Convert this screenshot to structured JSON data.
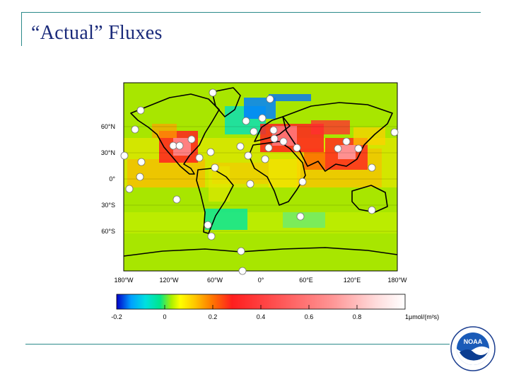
{
  "slide": {
    "title": "“Actual” Fluxes"
  },
  "map": {
    "lon_ticks": [
      "180°W",
      "120°W",
      "60°W",
      "0°",
      "60°E",
      "120°E",
      "180°W"
    ],
    "lat_ticks": [
      "60°N",
      "30°N",
      "0°",
      "30°S",
      "60°S"
    ]
  },
  "colorbar": {
    "ticks": [
      "-0.2",
      "0",
      "0.2",
      "0.4",
      "0.6",
      "0.8"
    ],
    "unit": "1μmol/(m²s)",
    "colors": [
      "#0000c8",
      "#00a0ff",
      "#00e0e0",
      "#00e68c",
      "#aaf000",
      "#ffff00",
      "#ffc800",
      "#ff7800",
      "#ff1e1e",
      "#ff5050",
      "#ff9696",
      "#ffdcdc",
      "#ffffff"
    ]
  },
  "logo": {
    "name": "noaa-logo",
    "text": "NOAA"
  }
}
